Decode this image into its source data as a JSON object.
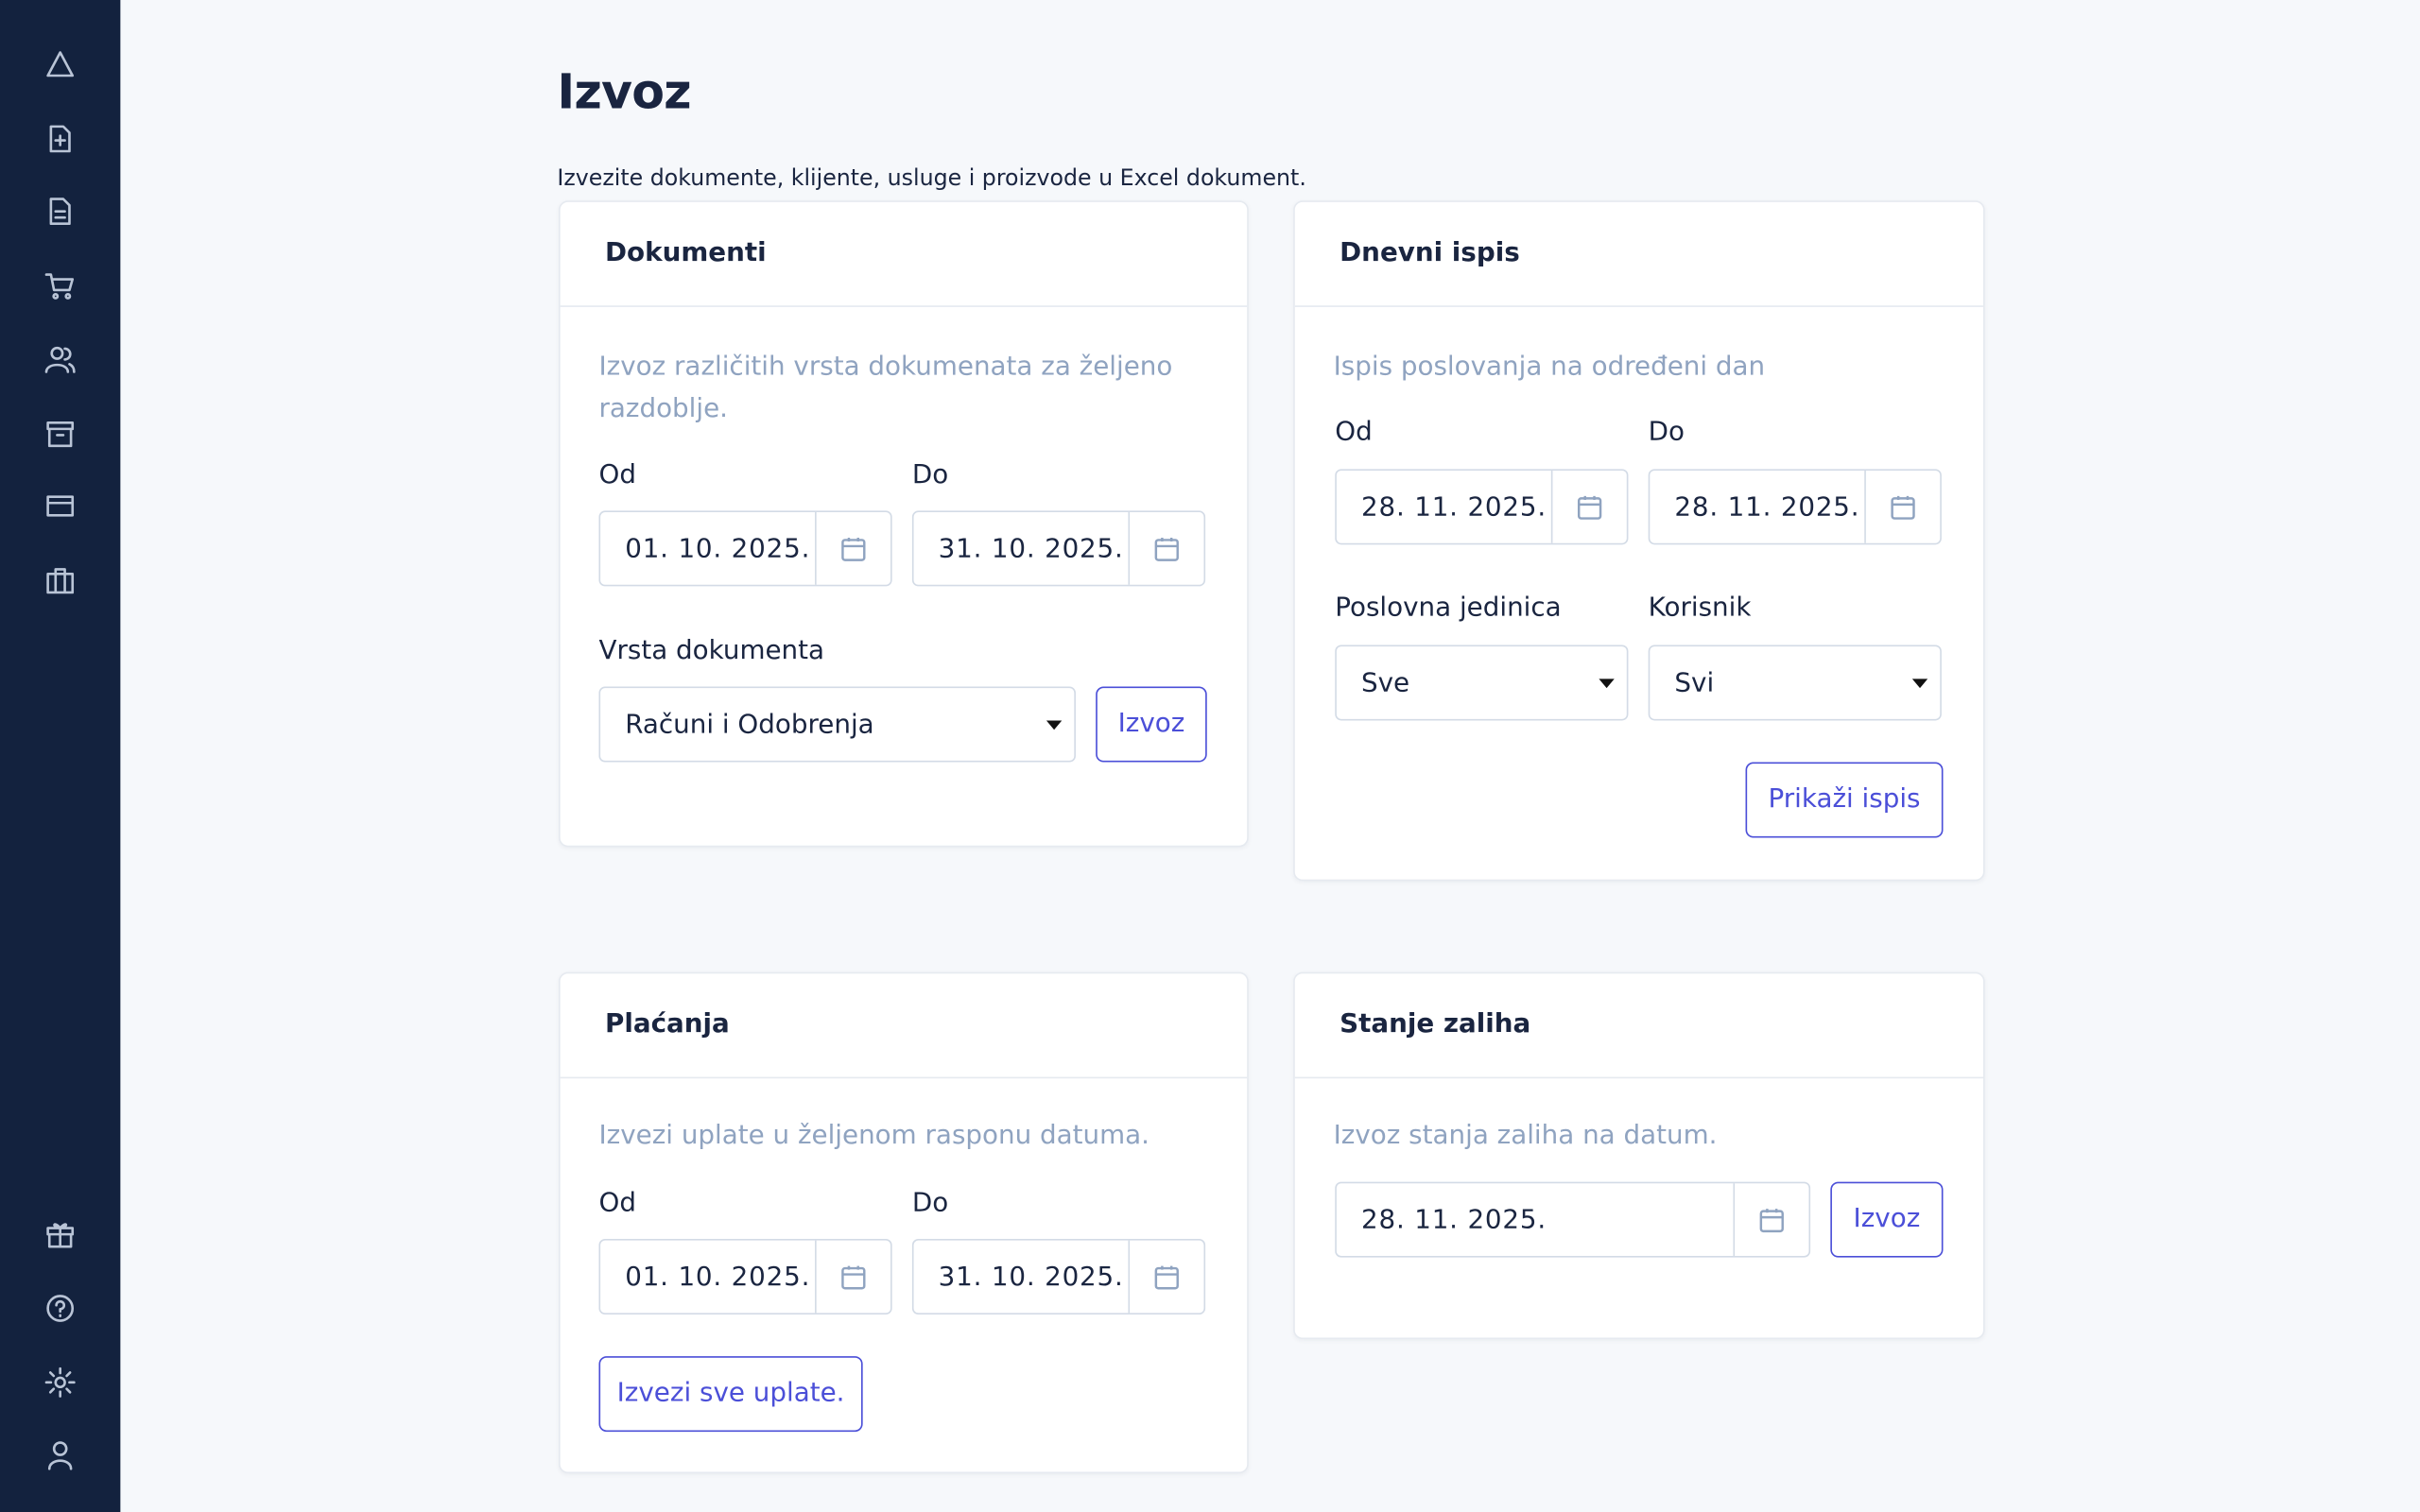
{
  "page": {
    "title": "Izvoz",
    "description": "Izvezite dokumente, klijente, usluge i proizvode u Excel dokument."
  },
  "cards": [
    {
      "title": "Dokumenti",
      "description": "Izvoz različitih vrsta dokumenata za željeno razdoblje.",
      "from_label": "Od",
      "from": "01. 10. 2025.",
      "to_label": "Do",
      "to": "31. 10. 2025.",
      "select_label": "Vrsta dokumenta",
      "select": "Računi i Odobrenja",
      "button": "Izvoz"
    },
    {
      "title": "Dnevni ispis",
      "description": "Ispis poslovanja na određeni dan",
      "from_label": "Od",
      "from": "28. 11. 2025.",
      "to_label": "Do",
      "to": "28. 11. 2025.",
      "unit_label": "Poslovna jedinica",
      "unit": "Sve",
      "user_label": "Korisnik",
      "user": "Svi",
      "button": "Prikaži ispis"
    },
    {
      "title": "Plaćanja",
      "description": "Izvezi uplate u željenom rasponu datuma.",
      "from_label": "Od",
      "from": "01. 10. 2025.",
      "to_label": "Do",
      "to": "31. 10. 2025.",
      "button": "Izvezi sve uplate."
    },
    {
      "title": "Stanje zaliha",
      "description": "Izvoz stanja zaliha na datum.",
      "date": "28. 11. 2025.",
      "button": "Izvoz"
    }
  ]
}
